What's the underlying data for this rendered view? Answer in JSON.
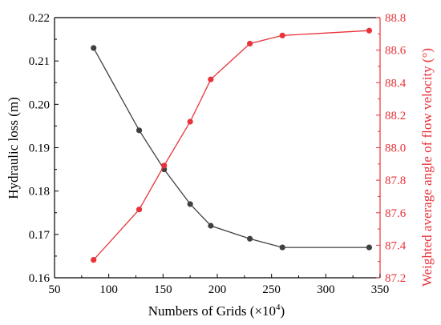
{
  "chart_data": {
    "type": "line",
    "xlabel_main": "Numbers of Grids (×10",
    "xlabel_sup": "4",
    "xlabel_close": ")",
    "ylabel_left": "Hydraulic loss (m)",
    "ylabel_right": "Weighted average angle of flow velocity (°)",
    "xlim": [
      50,
      350
    ],
    "ylim_left": [
      0.16,
      0.22
    ],
    "ylim_right": [
      87.2,
      88.8
    ],
    "xticks": [
      50,
      100,
      150,
      200,
      250,
      300,
      350
    ],
    "yticks_left": [
      0.16,
      0.17,
      0.18,
      0.19,
      0.2,
      0.21,
      0.22
    ],
    "yticks_right": [
      87.2,
      87.4,
      87.6,
      87.8,
      88.0,
      88.2,
      88.4,
      88.6,
      88.8
    ],
    "x": [
      86,
      128,
      151,
      175,
      194,
      230,
      260,
      340
    ],
    "series": [
      {
        "axis": "left",
        "color": "#404040",
        "values": [
          0.213,
          0.194,
          0.185,
          0.177,
          0.172,
          0.169,
          0.167,
          0.167
        ]
      },
      {
        "axis": "right",
        "color": "#e8333a",
        "values": [
          87.31,
          87.62,
          87.89,
          88.16,
          88.42,
          88.64,
          88.69,
          88.72
        ]
      }
    ],
    "colors": {
      "axis": "#000000",
      "right_axis": "#e8333a",
      "left_series": "#404040",
      "right_series": "#e8333a"
    },
    "grid": false,
    "legend": "none"
  }
}
